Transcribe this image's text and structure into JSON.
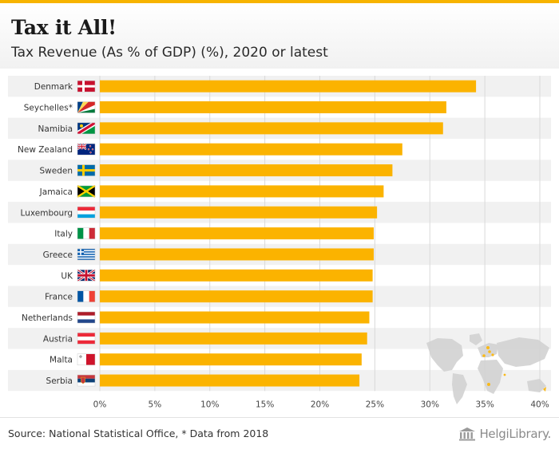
{
  "header": {
    "title": "Tax it All!",
    "subtitle": "Tax Revenue (As % of GDP) (%), 2020 or latest"
  },
  "footer": {
    "source": "Source: National Statistical Office, * Data from 2018",
    "brand": "HelgiLibrary."
  },
  "colors": {
    "bar": "#fbb300",
    "accent": "#f7b400",
    "band": "#f1f1f1",
    "grid": "#d9d9d9"
  },
  "icons": {
    "brand_logo": "library-building-icon",
    "map": "world-map-icon"
  },
  "chart_data": {
    "type": "bar",
    "orientation": "horizontal",
    "categories": [
      "Denmark",
      "Seychelles*",
      "Namibia",
      "New Zealand",
      "Sweden",
      "Jamaica",
      "Luxembourg",
      "Italy",
      "Greece",
      "UK",
      "France",
      "Netherlands",
      "Austria",
      "Malta",
      "Serbia"
    ],
    "values": [
      34.2,
      31.5,
      31.2,
      27.5,
      26.6,
      25.8,
      25.2,
      24.9,
      24.9,
      24.8,
      24.8,
      24.5,
      24.3,
      23.8,
      23.6
    ],
    "xlim": [
      0,
      40
    ],
    "xticks": [
      "0%",
      "5%",
      "10%",
      "15%",
      "20%",
      "25%",
      "30%",
      "35%",
      "40%"
    ],
    "xlabel": "",
    "ylabel": "",
    "grid": true
  }
}
